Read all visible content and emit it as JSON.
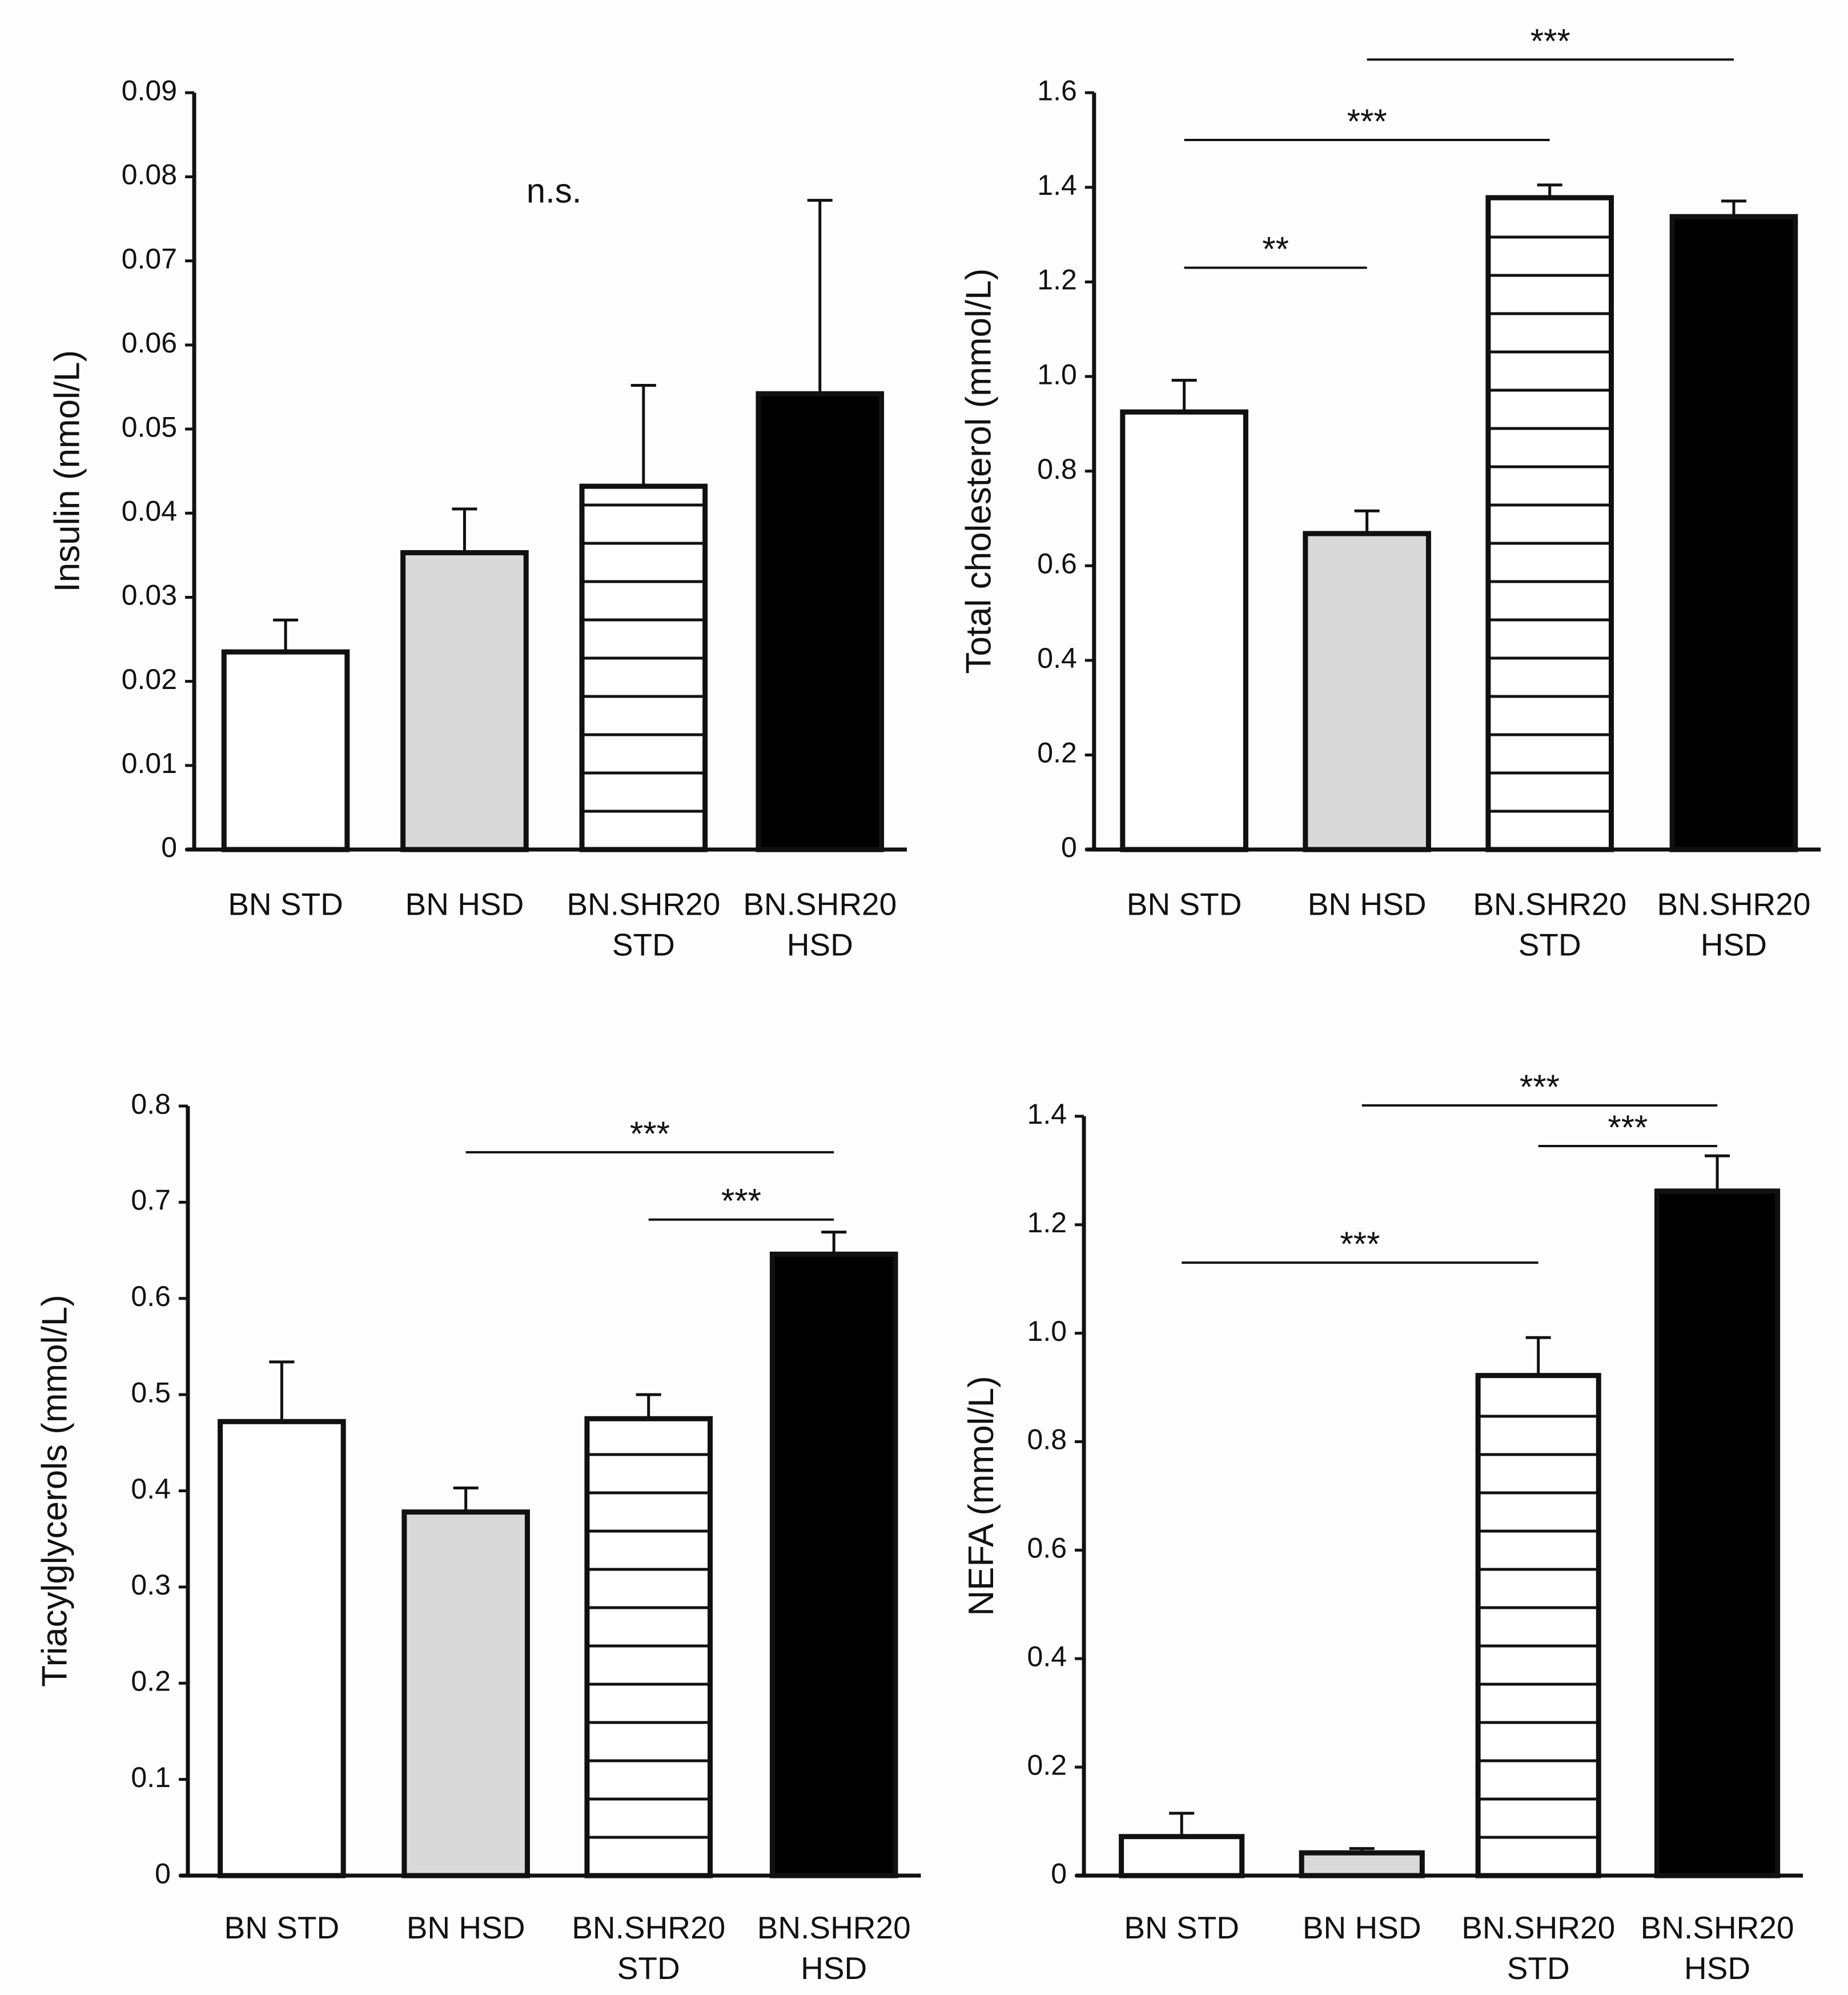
{
  "colors": {
    "ink": "#111111",
    "gray_fill": "#d9d9d9",
    "black_fill": "#000000",
    "white_fill": "#ffffff",
    "background": "#fdfdfd"
  },
  "chart_data": [
    {
      "type": "bar",
      "ylabel": "Insulin (nmol/L)",
      "ylim": [
        0,
        0.09
      ],
      "ytick_values": [
        0,
        0.01,
        0.02,
        0.03,
        0.04,
        0.05,
        0.06,
        0.07,
        0.08,
        0.09
      ],
      "ytick_labels": [
        "0",
        "0.01",
        "0.02",
        "0.03",
        "0.04",
        "0.05",
        "0.06",
        "0.07",
        "0.08",
        "0.09"
      ],
      "categories": [
        [
          "BN STD"
        ],
        [
          "BN HSD"
        ],
        [
          "BN.SHR20",
          "STD"
        ],
        [
          "BN.SHR20",
          "HSD"
        ]
      ],
      "values": [
        0.0235,
        0.0353,
        0.0432,
        0.0542
      ],
      "errors": [
        0.0038,
        0.0052,
        0.012,
        0.023
      ],
      "fills": [
        "white",
        "gray",
        "hatched",
        "black"
      ],
      "annotations": [
        {
          "text": "n.s.",
          "x": 1.5,
          "y": 0.078
        }
      ],
      "significance": []
    },
    {
      "type": "bar",
      "ylabel": "Total cholesterol (mmol/L)",
      "ylim": [
        0,
        1.6
      ],
      "ytick_values": [
        0,
        0.2,
        0.4,
        0.6,
        0.8,
        1.0,
        1.2,
        1.4,
        1.6
      ],
      "ytick_labels": [
        "0",
        "0.2",
        "0.4",
        "0.6",
        "0.8",
        "1.0",
        "1.2",
        "1.4",
        "1.6"
      ],
      "categories": [
        [
          "BN STD"
        ],
        [
          "BN HSD"
        ],
        [
          "BN.SHR20",
          "STD"
        ],
        [
          "BN.SHR20",
          "HSD"
        ]
      ],
      "values": [
        0.925,
        0.668,
        1.378,
        1.338
      ],
      "errors": [
        0.067,
        0.048,
        0.027,
        0.033
      ],
      "fills": [
        "white",
        "gray",
        "hatched",
        "black"
      ],
      "annotations": [],
      "significance": [
        {
          "from": 0,
          "to": 1,
          "y": 1.23,
          "text": "**"
        },
        {
          "from": 0,
          "to": 2,
          "y": 1.5,
          "text": "***"
        },
        {
          "from": 1,
          "to": 3,
          "y": 1.67,
          "text": "***"
        }
      ]
    },
    {
      "type": "bar",
      "ylabel": "Triacylglycerols (mmol/L)",
      "ylim": [
        0,
        0.8
      ],
      "ytick_values": [
        0,
        0.1,
        0.2,
        0.3,
        0.4,
        0.5,
        0.6,
        0.7,
        0.8
      ],
      "ytick_labels": [
        "0",
        "0.1",
        "0.2",
        "0.3",
        "0.4",
        "0.5",
        "0.6",
        "0.7",
        "0.8"
      ],
      "categories": [
        [
          "BN STD"
        ],
        [
          "BN HSD"
        ],
        [
          "BN.SHR20",
          "STD"
        ],
        [
          "BN.SHR20",
          "HSD"
        ]
      ],
      "values": [
        0.472,
        0.378,
        0.475,
        0.646
      ],
      "errors": [
        0.062,
        0.025,
        0.025,
        0.023
      ],
      "fills": [
        "white",
        "gray",
        "hatched",
        "black"
      ],
      "annotations": [],
      "significance": [
        {
          "from": 1,
          "to": 3,
          "y": 0.752,
          "text": "***"
        },
        {
          "from": 2,
          "to": 3,
          "y": 0.682,
          "text": "***"
        }
      ]
    },
    {
      "type": "bar",
      "ylabel": "NEFA (mmol/L)",
      "ylim": [
        0,
        1.4
      ],
      "ytick_values": [
        0,
        0.2,
        0.4,
        0.6,
        0.8,
        1.0,
        1.2,
        1.4
      ],
      "ytick_labels": [
        "0",
        "0.2",
        "0.4",
        "0.6",
        "0.8",
        "1.0",
        "1.2",
        "1.4"
      ],
      "categories": [
        [
          "BN STD"
        ],
        [
          "BN HSD"
        ],
        [
          "BN.SHR20",
          "STD"
        ],
        [
          "BN.SHR20",
          "HSD"
        ]
      ],
      "values": [
        0.072,
        0.042,
        0.922,
        1.262
      ],
      "errors": [
        0.043,
        0.008,
        0.07,
        0.065
      ],
      "fills": [
        "white",
        "gray",
        "hatched",
        "black"
      ],
      "annotations": [],
      "significance": [
        {
          "from": 0,
          "to": 2,
          "y": 1.13,
          "text": "***"
        },
        {
          "from": 2,
          "to": 3,
          "y": 1.345,
          "text": "***"
        },
        {
          "from": 1,
          "to": 3,
          "y": 1.42,
          "text": "***"
        }
      ]
    }
  ]
}
